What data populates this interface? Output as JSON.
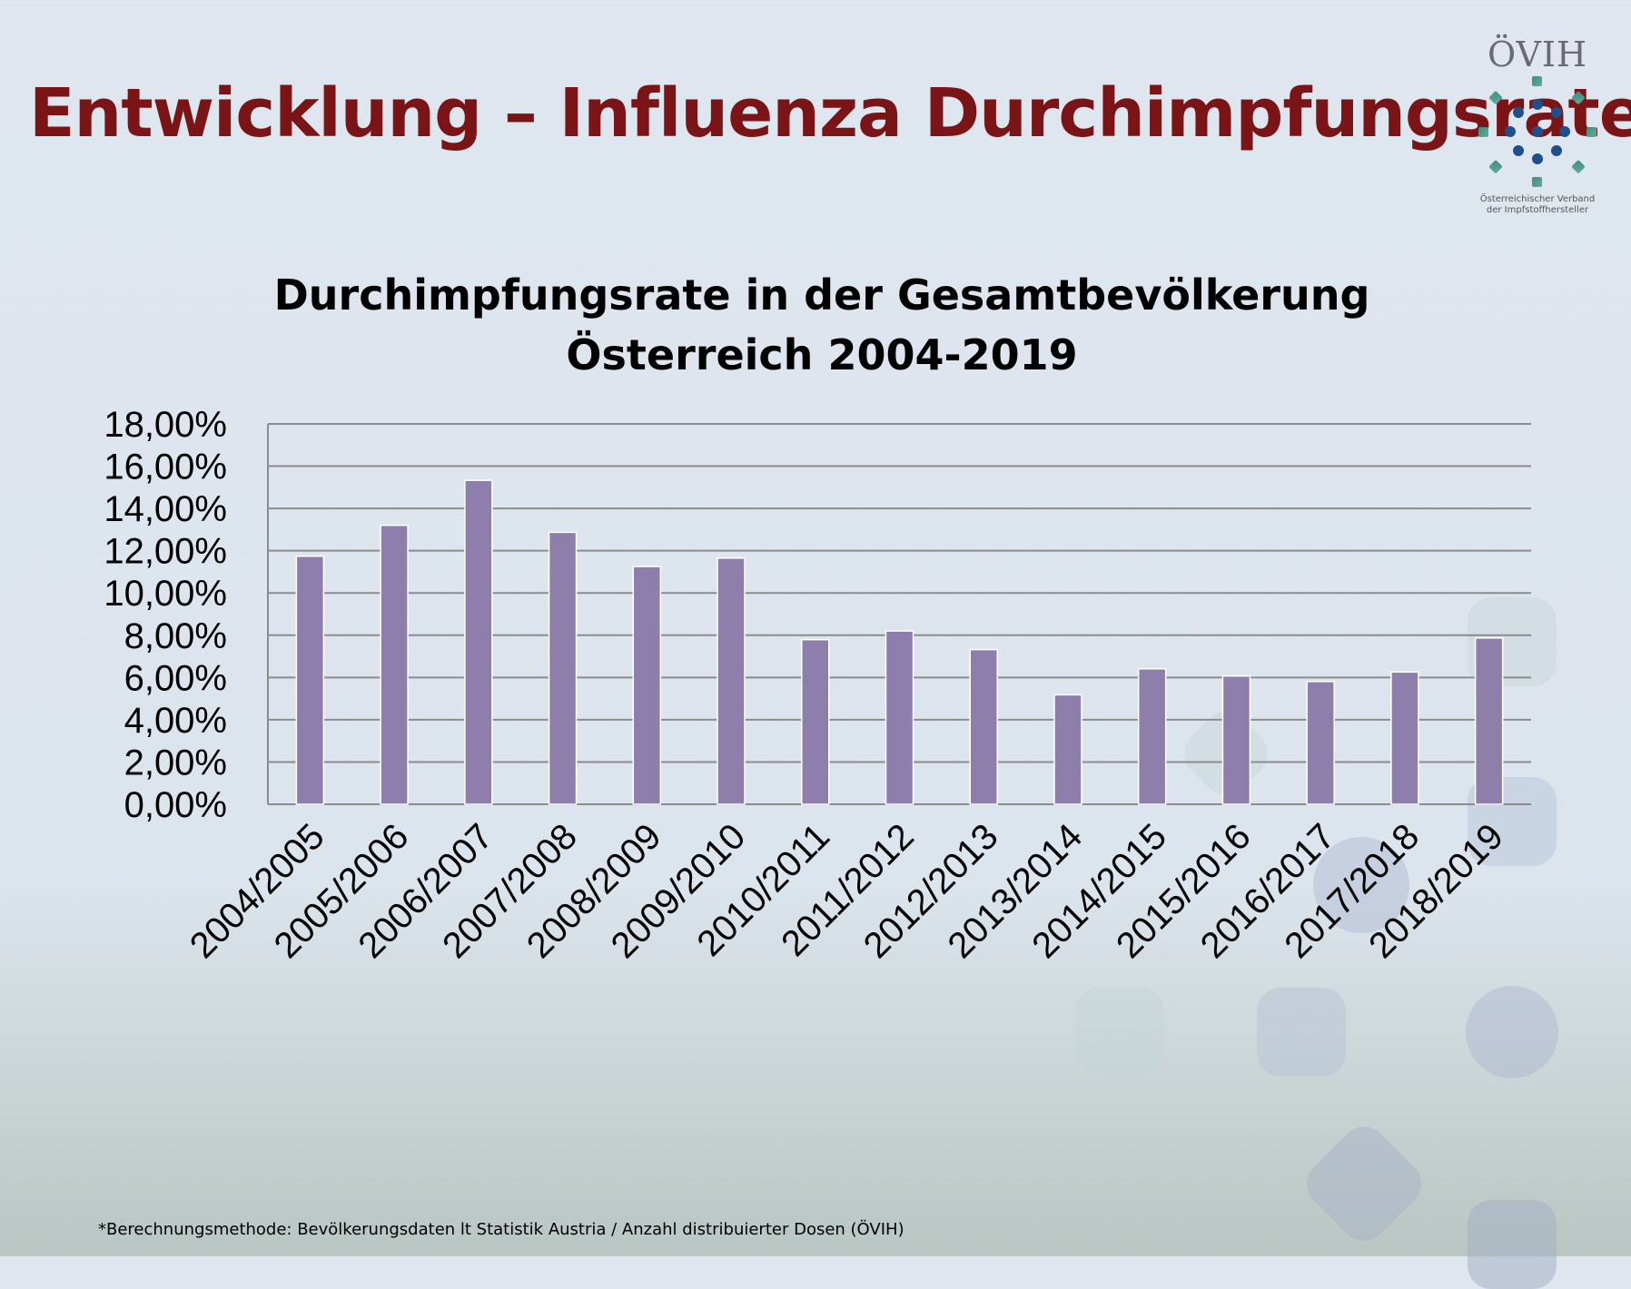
{
  "header": {
    "title": "Entwicklung – Influenza Durchimpfungsrate",
    "logo_text": "ÖVIH",
    "logo_subtitle_line1": "Österreichischer Verband",
    "logo_subtitle_line2": "der Impfstoffhersteller"
  },
  "footnote": "*Berechnungsmethode: Bevölkerungsdaten lt Statistik Austria / Anzahl distribuierter Dosen (ÖVIH)",
  "colors": {
    "bar": "#8e7eac",
    "title": "#7a1416",
    "grid": "#8c8c8c"
  },
  "chart_data": {
    "type": "bar",
    "title_line1": "Durchimpfungsrate in der Gesamtbevölkerung",
    "title_line2": "Österreich 2004-2019",
    "categories": [
      "2004/2005",
      "2005/2006",
      "2006/2007",
      "2007/2008",
      "2008/2009",
      "2009/2010",
      "2010/2011",
      "2011/2012",
      "2012/2013",
      "2013/2014",
      "2014/2015",
      "2015/2016",
      "2016/2017",
      "2017/2018",
      "2018/2019"
    ],
    "values": [
      11.74,
      13.2,
      15.33,
      12.87,
      11.25,
      11.65,
      7.79,
      8.2,
      7.32,
      5.18,
      6.41,
      6.07,
      5.81,
      6.26,
      7.87
    ],
    "unit": "%",
    "ylim": [
      0,
      18
    ],
    "yticks": [
      "0,00%",
      "2,00%",
      "4,00%",
      "6,00%",
      "8,00%",
      "10,00%",
      "12,00%",
      "14,00%",
      "16,00%",
      "18,00%"
    ],
    "grid": true,
    "legend": "none"
  }
}
